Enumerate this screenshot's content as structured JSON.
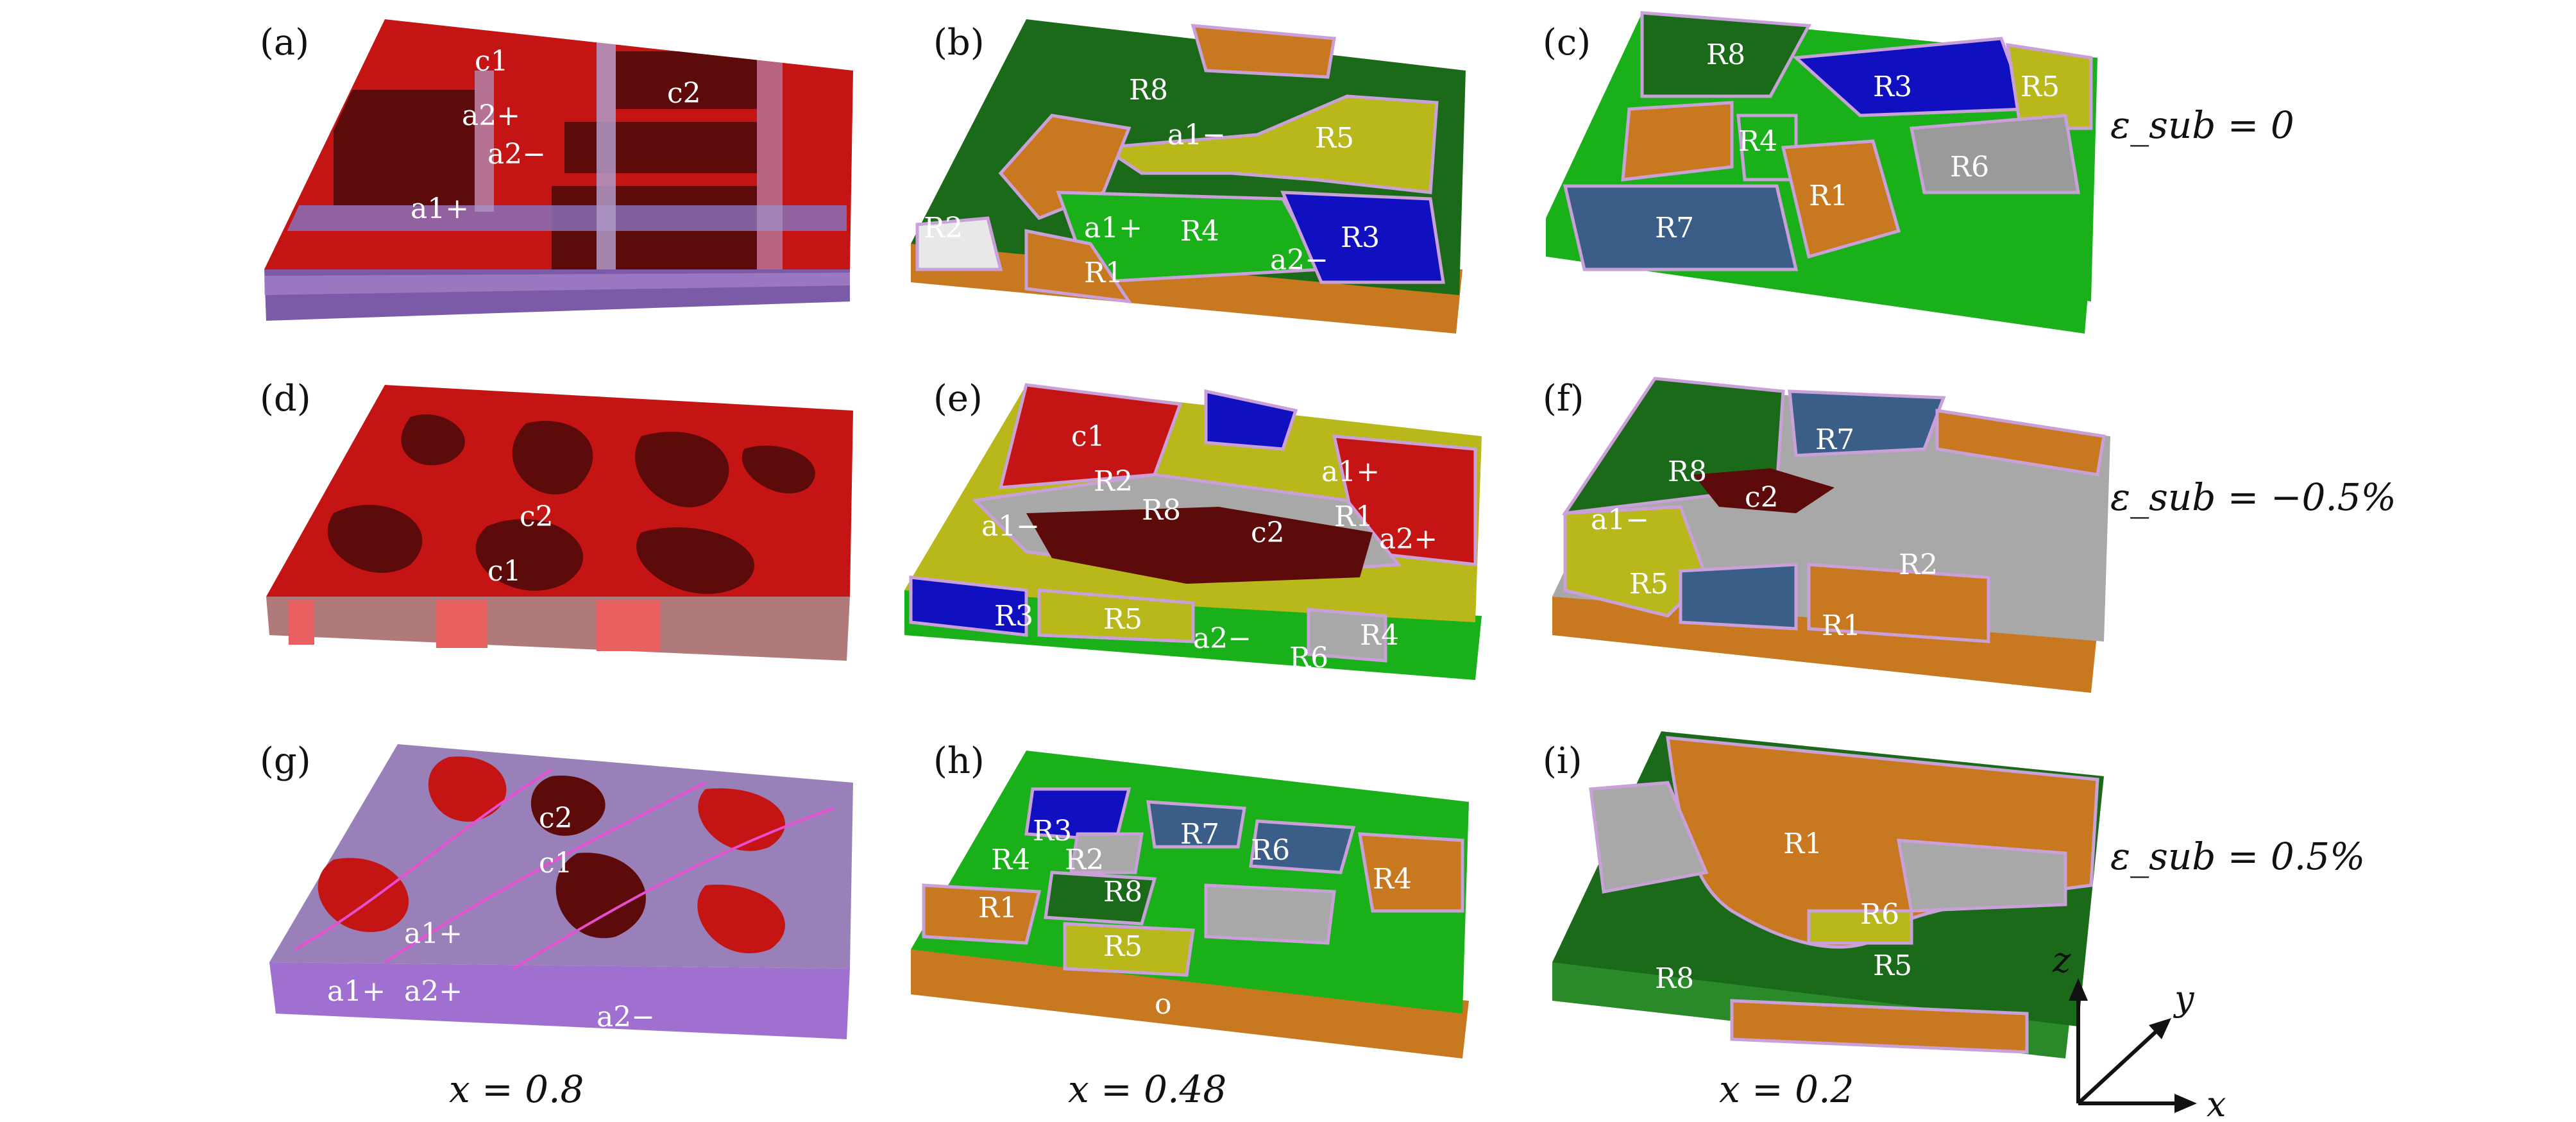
{
  "panels": [
    {
      "id": "a",
      "label": "(a)",
      "regions": [
        "c1",
        "c2",
        "a2+",
        "a2−",
        "a1+"
      ]
    },
    {
      "id": "b",
      "label": "(b)",
      "regions": [
        "R8",
        "a1−",
        "R5",
        "R2",
        "a1+",
        "R4",
        "R3",
        "a2−",
        "R1"
      ]
    },
    {
      "id": "c",
      "label": "(c)",
      "regions": [
        "R8",
        "R3",
        "R5",
        "R4",
        "R6",
        "R1",
        "R7"
      ]
    },
    {
      "id": "d",
      "label": "(d)",
      "regions": [
        "c2",
        "c1"
      ]
    },
    {
      "id": "e",
      "label": "(e)",
      "regions": [
        "c1",
        "R2",
        "a1+",
        "a1−",
        "R8",
        "R1",
        "c2",
        "a2+",
        "R3",
        "R5",
        "a2−",
        "R6",
        "R4"
      ]
    },
    {
      "id": "f",
      "label": "(f)",
      "regions": [
        "R7",
        "R8",
        "c2",
        "a1−",
        "R2",
        "R5",
        "R1"
      ]
    },
    {
      "id": "g",
      "label": "(g)",
      "regions": [
        "c2",
        "c1",
        "a1+",
        "a1+",
        "a2+",
        "a2−"
      ]
    },
    {
      "id": "h",
      "label": "(h)",
      "regions": [
        "R3",
        "R7",
        "R6",
        "R4",
        "R2",
        "R4",
        "R8",
        "R1",
        "R5",
        "o"
      ]
    },
    {
      "id": "i",
      "label": "(i)",
      "regions": [
        "R1",
        "R6",
        "R8",
        "R5"
      ]
    }
  ],
  "row_labels": [
    "ε_sub = 0",
    "ε_sub = −0.5%",
    "ε_sub = 0.5%"
  ],
  "column_labels": [
    "x = 0.8",
    "x = 0.48",
    "x = 0.2"
  ],
  "axes": {
    "z": "z",
    "y": "y",
    "x": "x"
  },
  "colors": {
    "c_domain": "#c41414",
    "c_dark": "#5c0a0a",
    "a_domain": "#6a3fa8",
    "R1": "#c8781e",
    "R2": "#a8a8a8",
    "R3": "#1010c0",
    "R4": "#1ab01a",
    "R5": "#b8b81a",
    "R6": "#9a9a9a",
    "R7": "#3a5e88",
    "R8": "#1a6a1a",
    "boundary": "#d060e0"
  }
}
